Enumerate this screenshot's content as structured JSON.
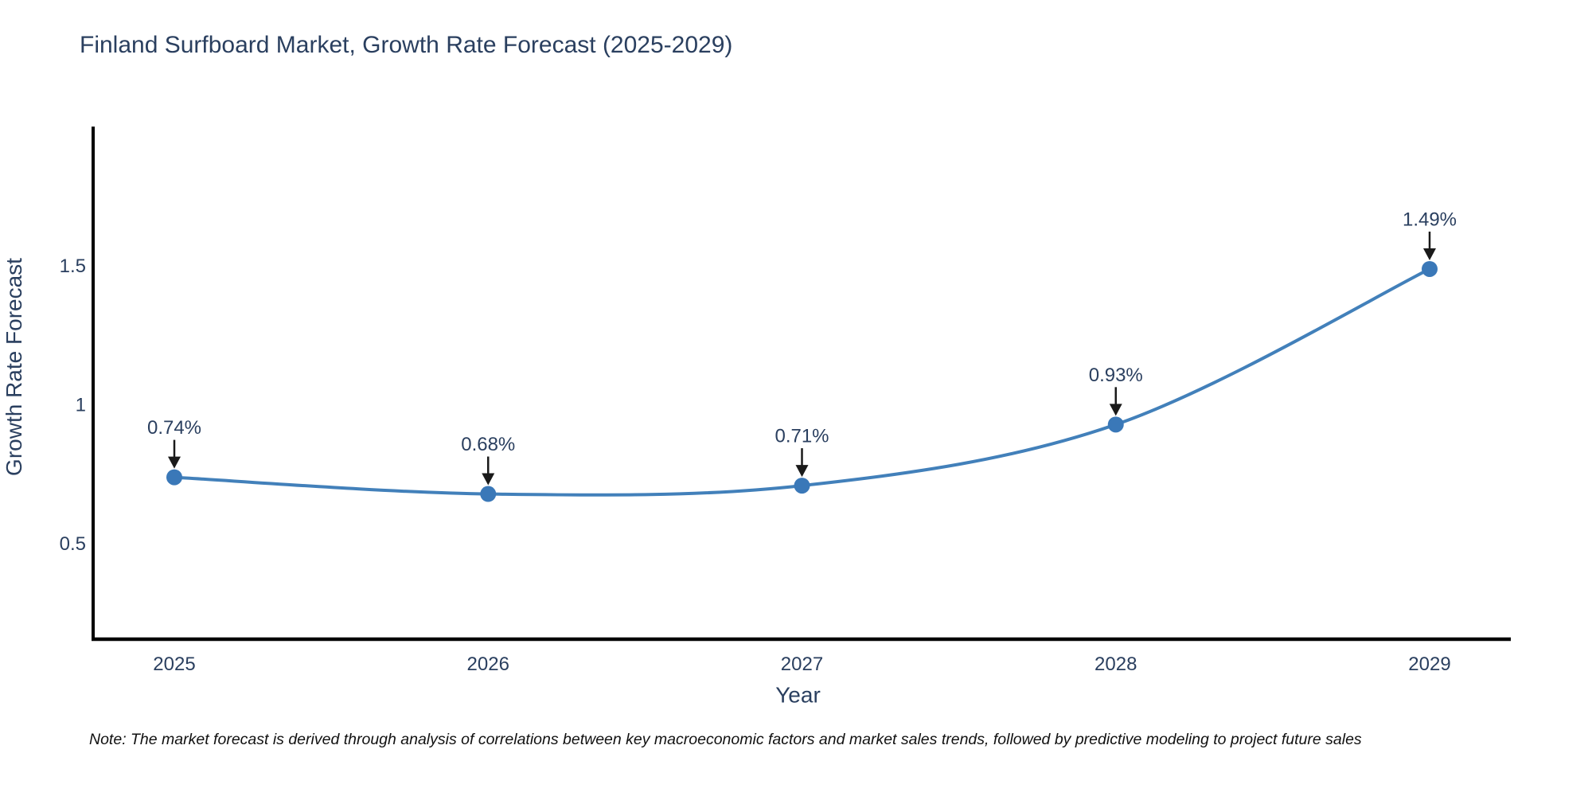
{
  "title": "Finland Surfboard Market, Growth Rate Forecast (2025-2029)",
  "note": "Note: The market forecast is derived through analysis of correlations between key macroeconomic factors and market sales trends, followed by predictive modeling to project future sales",
  "colors": {
    "line": "#4280ba",
    "marker": "#3a78b8",
    "text": "#2a3f5f",
    "axis": "#000000",
    "arrow": "#1a1a1a",
    "note_text": "#111111"
  },
  "chart_data": {
    "type": "line",
    "title": "Finland Surfboard Market, Growth Rate Forecast (2025-2029)",
    "xlabel": "Year",
    "ylabel": "Growth Rate Forecast",
    "x": [
      2025,
      2026,
      2027,
      2028,
      2029
    ],
    "values": [
      0.74,
      0.68,
      0.71,
      0.93,
      1.49
    ],
    "point_labels": [
      "0.74%",
      "0.68%",
      "0.71%",
      "0.93%",
      "1.49%"
    ],
    "yticks": [
      0.5,
      1,
      1.5
    ],
    "ytick_labels": [
      "0.5",
      "1",
      "1.5"
    ],
    "xtick_labels": [
      "2025",
      "2026",
      "2027",
      "2028",
      "2029"
    ],
    "ylim": [
      0.157,
      2.003
    ],
    "grid": false,
    "legend": false,
    "line_shape": "spline",
    "annotations_have_arrows": true
  }
}
